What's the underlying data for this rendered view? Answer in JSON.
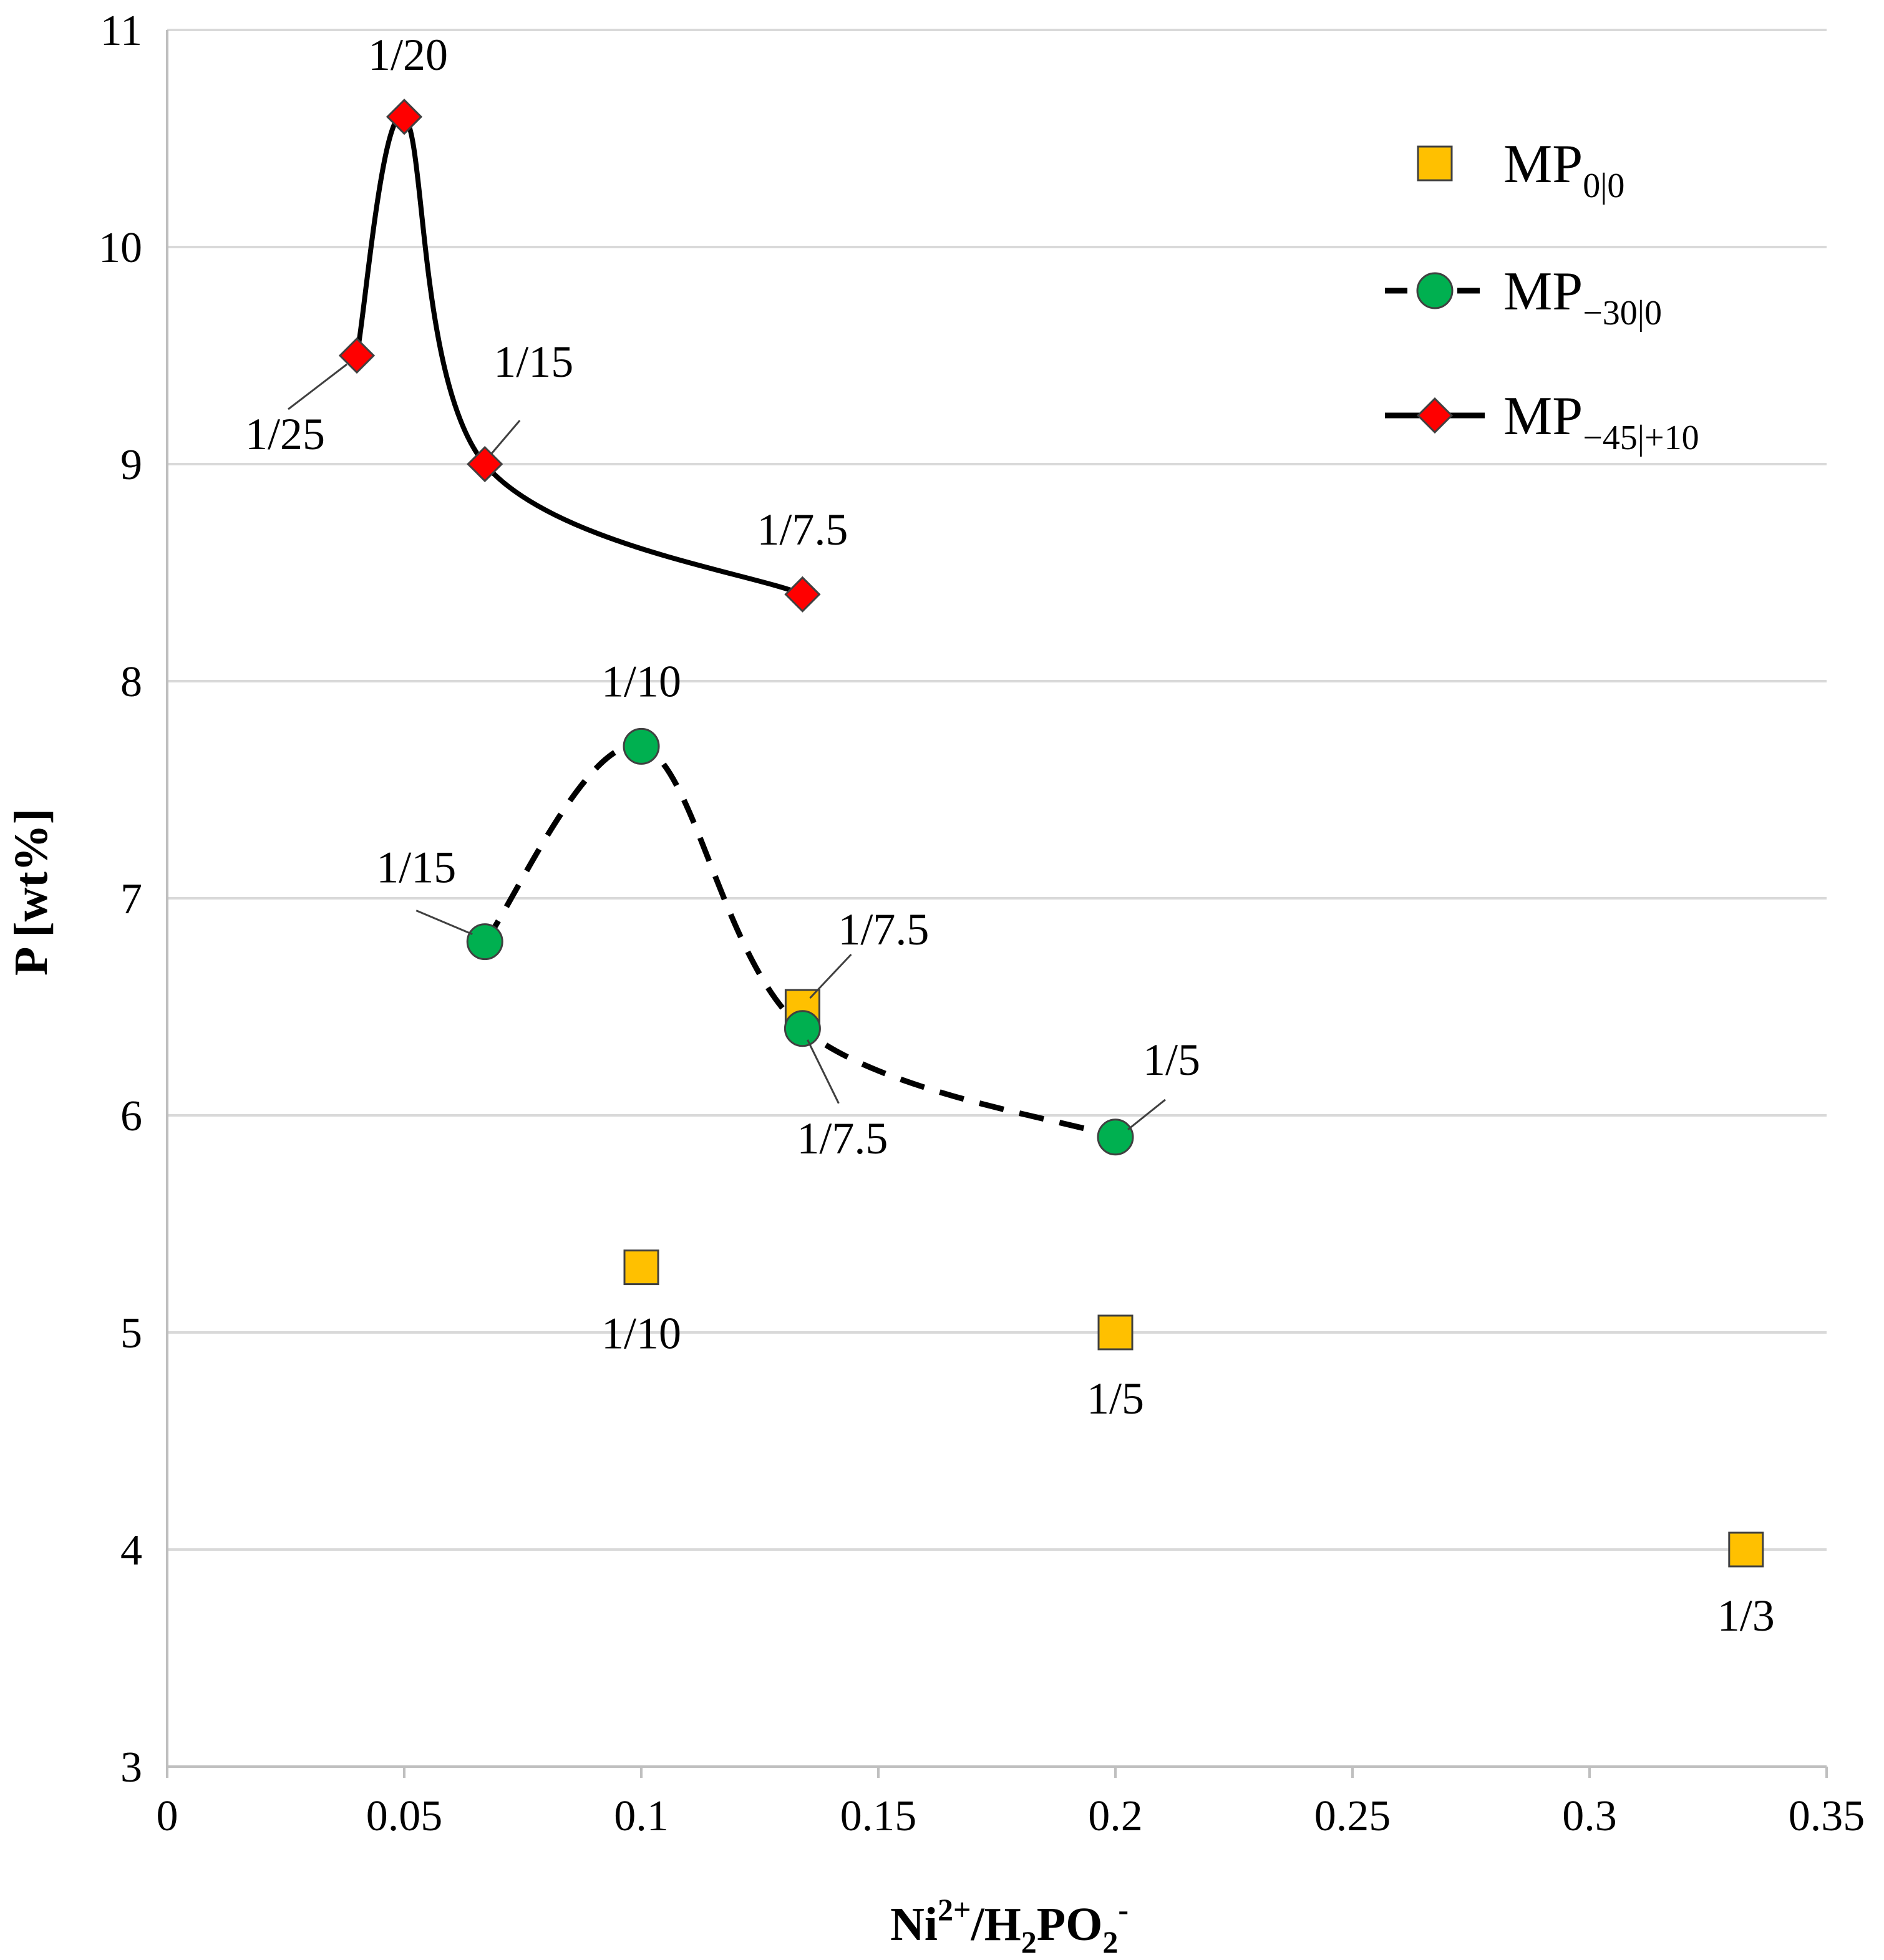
{
  "chart_data": {
    "type": "scatter",
    "title": "",
    "xlabel": "Ni2+/H2PO2-",
    "xlabel_parts": {
      "a": "Ni",
      "b": "2+",
      "c": "/H",
      "d": "2",
      "e": "PO",
      "f": "2",
      "g": "-"
    },
    "ylabel": "P [wt%]",
    "xlim": [
      0,
      0.35
    ],
    "ylim": [
      3,
      11
    ],
    "xticks": [
      0,
      0.05,
      0.1,
      0.15,
      0.2,
      0.25,
      0.3,
      0.35
    ],
    "xtick_labels": [
      "0",
      "0.05",
      "0.1",
      "0.15",
      "0.2",
      "0.25",
      "0.3",
      "0.35"
    ],
    "yticks": [
      3,
      4,
      5,
      6,
      7,
      8,
      9,
      10,
      11
    ],
    "ytick_labels": [
      "3",
      "4",
      "5",
      "6",
      "7",
      "8",
      "9",
      "10",
      "11"
    ],
    "grid": "horizontal",
    "legend_position": "top-right",
    "series": [
      {
        "name": "MP0|0",
        "base": "MP",
        "subscript": "0|0",
        "marker": "square",
        "color": "#FFC000",
        "line": "none",
        "points": [
          {
            "x": 0.1,
            "y": 5.3,
            "label": "1/10"
          },
          {
            "x": 0.134,
            "y": 6.5,
            "label": "1/7.5"
          },
          {
            "x": 0.2,
            "y": 5.0,
            "label": "1/5"
          },
          {
            "x": 0.333,
            "y": 4.0,
            "label": "1/3"
          }
        ]
      },
      {
        "name": "MP−30|0",
        "base": "MP",
        "subscript": "−30|0",
        "marker": "circle",
        "color": "#00B050",
        "line": "dashed",
        "points": [
          {
            "x": 0.067,
            "y": 6.8,
            "label": "1/15"
          },
          {
            "x": 0.1,
            "y": 7.7,
            "label": "1/10"
          },
          {
            "x": 0.134,
            "y": 6.4,
            "label": "1/7.5"
          },
          {
            "x": 0.2,
            "y": 5.9,
            "label": "1/5"
          }
        ]
      },
      {
        "name": "MP−45|+10",
        "base": "MP",
        "subscript": "−45|+10",
        "marker": "diamond",
        "color": "#FF0000",
        "line": "solid",
        "points": [
          {
            "x": 0.04,
            "y": 9.5,
            "label": "1/25"
          },
          {
            "x": 0.05,
            "y": 10.6,
            "label": "1/20"
          },
          {
            "x": 0.067,
            "y": 9.0,
            "label": "1/15"
          },
          {
            "x": 0.134,
            "y": 8.4,
            "label": "1/7.5"
          }
        ]
      }
    ]
  }
}
